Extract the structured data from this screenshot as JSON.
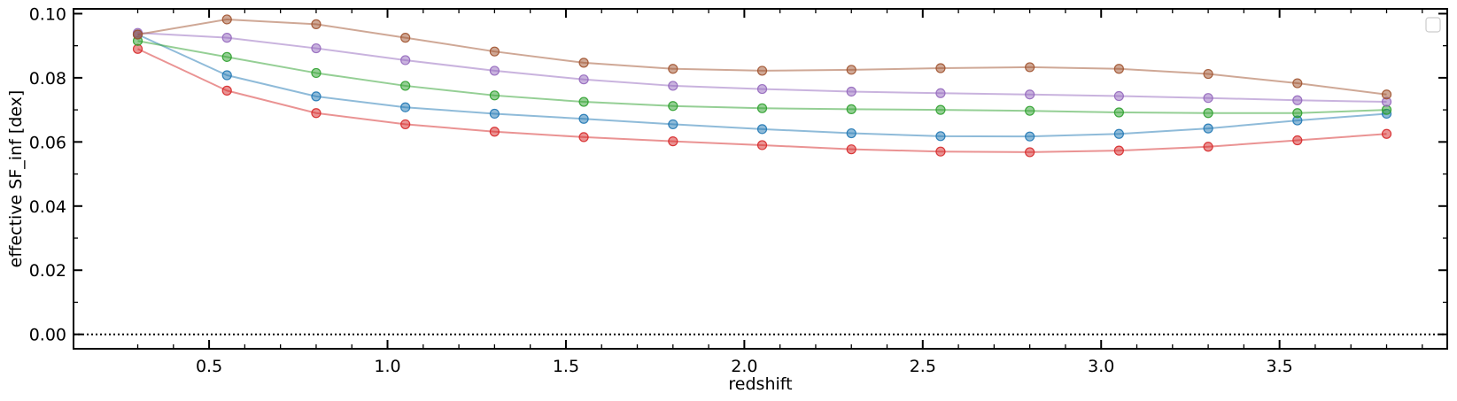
{
  "chart_data": {
    "type": "line",
    "title": "",
    "xlabel": "redshift",
    "ylabel": "effective SF_inf [dex]",
    "xlim": [
      0.12,
      3.97
    ],
    "ylim": [
      -0.0045,
      0.1015
    ],
    "xticks": [
      0.5,
      1.0,
      1.5,
      2.0,
      2.5,
      3.0,
      3.5
    ],
    "xtick_labels": [
      "0.5",
      "1.0",
      "1.5",
      "2.0",
      "2.5",
      "3.0",
      "3.5"
    ],
    "yticks": [
      0.0,
      0.02,
      0.04,
      0.06,
      0.08,
      0.1
    ],
    "ytick_labels": [
      "0.00",
      "0.02",
      "0.04",
      "0.06",
      "0.08",
      "0.10"
    ],
    "grid": false,
    "legend": "upper-right, empty",
    "reference_line": {
      "y": 0.0,
      "style": "dotted",
      "color": "#000000"
    },
    "x": [
      0.3,
      0.55,
      0.8,
      1.05,
      1.3,
      1.55,
      1.8,
      2.05,
      2.3,
      2.55,
      2.8,
      3.05,
      3.3,
      3.55,
      3.8
    ],
    "series": [
      {
        "color": "#d62728",
        "values": [
          0.089,
          0.076,
          0.069,
          0.0655,
          0.0632,
          0.0615,
          0.0602,
          0.059,
          0.0577,
          0.057,
          0.0568,
          0.0573,
          0.0585,
          0.0605,
          0.0625
        ]
      },
      {
        "color": "#1f77b4",
        "values": [
          0.0935,
          0.0808,
          0.0742,
          0.0708,
          0.0688,
          0.0672,
          0.0655,
          0.064,
          0.0627,
          0.0618,
          0.0617,
          0.0625,
          0.0642,
          0.0667,
          0.0688
        ]
      },
      {
        "color": "#2ca02c",
        "values": [
          0.0915,
          0.0865,
          0.0815,
          0.0775,
          0.0745,
          0.0725,
          0.0712,
          0.0705,
          0.0702,
          0.07,
          0.0697,
          0.0692,
          0.069,
          0.069,
          0.07
        ]
      },
      {
        "color": "#9467bd",
        "values": [
          0.094,
          0.0925,
          0.0892,
          0.0855,
          0.0822,
          0.0795,
          0.0775,
          0.0765,
          0.0757,
          0.0752,
          0.0748,
          0.0743,
          0.0737,
          0.073,
          0.0725
        ]
      },
      {
        "color": "#a0522d",
        "values": [
          0.0935,
          0.0982,
          0.0967,
          0.0925,
          0.0882,
          0.0847,
          0.0828,
          0.0822,
          0.0825,
          0.083,
          0.0833,
          0.0828,
          0.0812,
          0.0783,
          0.0748
        ]
      }
    ]
  }
}
